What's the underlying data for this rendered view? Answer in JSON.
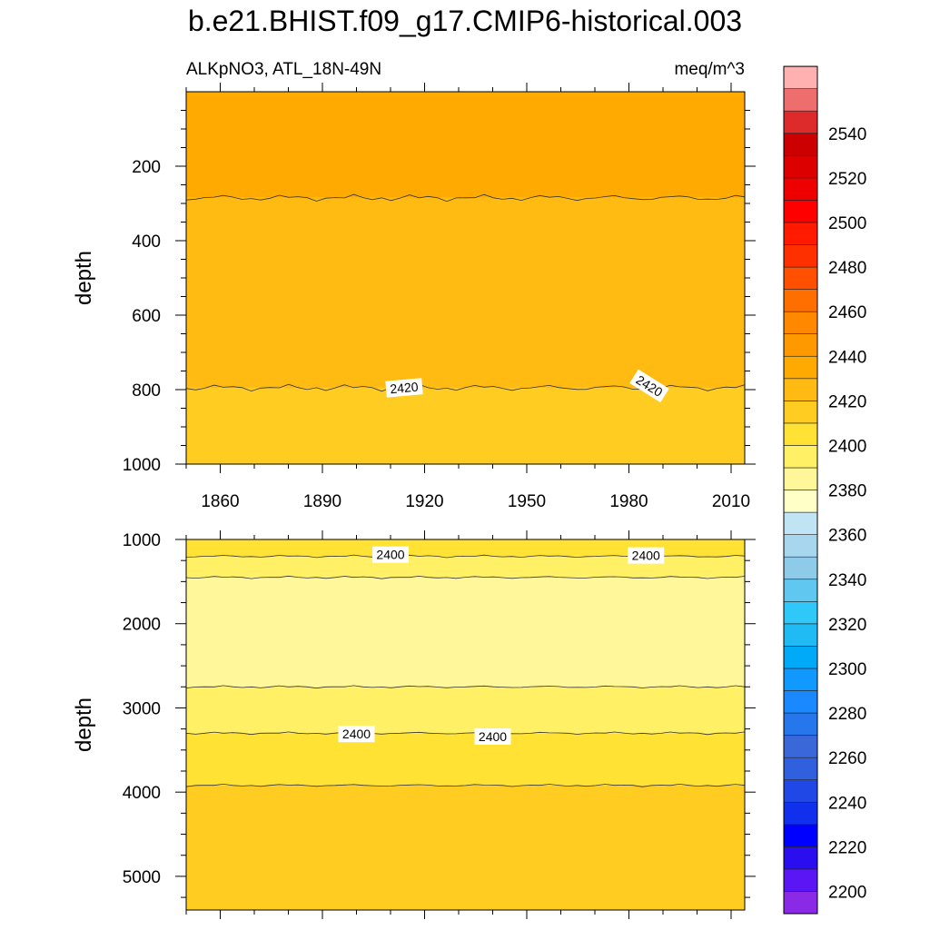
{
  "chart_data": {
    "type": "heatmap",
    "title": "b.e21.BHIST.f09_g17.CMIP6-historical.003",
    "variable_label": "ALKpNO3, ATL_18N-49N",
    "units_label": "meq/m^3",
    "xaxis": {
      "range": [
        1850,
        2014
      ],
      "ticks": [
        1860,
        1890,
        1920,
        1950,
        1980,
        2010
      ],
      "tick_labels": [
        "1860",
        "1890",
        "1920",
        "1950",
        "1980",
        "2010"
      ]
    },
    "panels": [
      {
        "ylabel": "depth",
        "ylim": [
          0,
          1000
        ],
        "yticks": [
          200,
          400,
          600,
          800,
          1000
        ],
        "ytick_labels": [
          "200",
          "400",
          "600",
          "800",
          "1000"
        ],
        "bands": [
          {
            "from": 0,
            "to": 285,
            "level_min": 2430,
            "level_max": 2440,
            "color": "#ffaa00"
          },
          {
            "from": 285,
            "to": 795,
            "level_min": 2420,
            "level_max": 2430,
            "color": "#ffbb11"
          },
          {
            "from": 795,
            "to": 1000,
            "level_min": 2410,
            "level_max": 2420,
            "color": "#ffcc22"
          }
        ],
        "contour_labels": [
          {
            "text": "2420",
            "x": 1914,
            "y": 795,
            "rotate": -5
          },
          {
            "text": "2420",
            "x": 1986,
            "y": 790,
            "rotate": 32
          }
        ]
      },
      {
        "ylabel": "depth",
        "ylim": [
          1000,
          5400
        ],
        "yticks": [
          1000,
          2000,
          3000,
          4000,
          5000
        ],
        "ytick_labels": [
          "1000",
          "2000",
          "3000",
          "4000",
          "5000"
        ],
        "bands": [
          {
            "from": 1000,
            "to": 1200,
            "level_min": 2400,
            "level_max": 2410,
            "color": "#ffe233"
          },
          {
            "from": 1200,
            "to": 1450,
            "level_min": 2390,
            "level_max": 2400,
            "color": "#fff066"
          },
          {
            "from": 1450,
            "to": 2750,
            "level_min": 2380,
            "level_max": 2390,
            "color": "#fff799"
          },
          {
            "from": 2750,
            "to": 3300,
            "level_min": 2390,
            "level_max": 2400,
            "color": "#fff066"
          },
          {
            "from": 3300,
            "to": 3920,
            "level_min": 2400,
            "level_max": 2410,
            "color": "#ffe233"
          },
          {
            "from": 3920,
            "to": 5400,
            "level_min": 2410,
            "level_max": 2420,
            "color": "#ffcc22"
          }
        ],
        "contour_labels": [
          {
            "text": "2400",
            "x": 1910,
            "y": 1180,
            "rotate": 0
          },
          {
            "text": "2400",
            "x": 1985,
            "y": 1190,
            "rotate": 0
          },
          {
            "text": "2400",
            "x": 1900,
            "y": 3310,
            "rotate": 0
          },
          {
            "text": "2400",
            "x": 1940,
            "y": 3340,
            "rotate": 0
          }
        ]
      }
    ],
    "colorbar": {
      "labels": [
        "2200",
        "2220",
        "2240",
        "2260",
        "2280",
        "2300",
        "2320",
        "2340",
        "2360",
        "2380",
        "2400",
        "2420",
        "2440",
        "2460",
        "2480",
        "2500",
        "2520",
        "2540"
      ],
      "colors": [
        "#8a2ae6",
        "#5a16f5",
        "#2a0ef0",
        "#0000ff",
        "#1030ee",
        "#2048e6",
        "#3060dd",
        "#3a68d8",
        "#2676ec",
        "#1a88ff",
        "#1099ff",
        "#00aaf8",
        "#20bbf5",
        "#30c8f8",
        "#60c8f0",
        "#8ecbe8",
        "#a8d6ee",
        "#c0e4f4",
        "#ffffc8",
        "#fff799",
        "#fff066",
        "#ffe233",
        "#ffcc22",
        "#ffbb11",
        "#ffaa00",
        "#ff9900",
        "#ff8800",
        "#ff6f00",
        "#ff5000",
        "#ff3000",
        "#ff1a00",
        "#ff0000",
        "#ee0000",
        "#dd0000",
        "#cc0000",
        "#dd2a2a",
        "#ee6d6d",
        "#ffb0b0"
      ]
    }
  }
}
